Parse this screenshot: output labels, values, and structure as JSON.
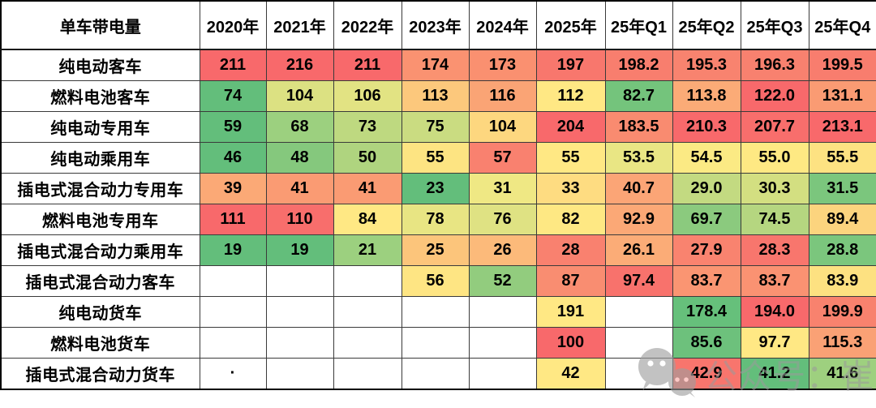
{
  "table": {
    "title": "单车带电量",
    "columns": [
      "2020年",
      "2021年",
      "2022年",
      "2023年",
      "2024年",
      "2025年",
      "25年Q1",
      "25年Q2",
      "25年Q3",
      "25年Q4"
    ],
    "highlight_col": 5,
    "rows": [
      {
        "label": "纯电动客车",
        "cells": [
          {
            "v": "211",
            "bg": "#F8696B"
          },
          {
            "v": "216",
            "bg": "#F8696B"
          },
          {
            "v": "211",
            "bg": "#F8696B"
          },
          {
            "v": "174",
            "bg": "#FA9271"
          },
          {
            "v": "173",
            "bg": "#FA9070"
          },
          {
            "v": "197",
            "bg": "#F8776D"
          },
          {
            "v": "198.2",
            "bg": "#F87E6E"
          },
          {
            "v": "195.3",
            "bg": "#F8836F"
          },
          {
            "v": "196.3",
            "bg": "#F8816F"
          },
          {
            "v": "199.5",
            "bg": "#F87D6E"
          }
        ]
      },
      {
        "label": "燃料电池客车",
        "cells": [
          {
            "v": "74",
            "bg": "#63BE7B"
          },
          {
            "v": "104",
            "bg": "#DCE182"
          },
          {
            "v": "106",
            "bg": "#E2E383"
          },
          {
            "v": "113",
            "bg": "#FCC87C"
          },
          {
            "v": "116",
            "bg": "#FAA475"
          },
          {
            "v": "112",
            "bg": "#FFE884"
          },
          {
            "v": "82.7",
            "bg": "#74C47C"
          },
          {
            "v": "113.8",
            "bg": "#FBAB77"
          },
          {
            "v": "122.0",
            "bg": "#F8696B"
          },
          {
            "v": "131.1",
            "bg": "#FA9B73"
          }
        ]
      },
      {
        "label": "纯电动专用车",
        "cells": [
          {
            "v": "59",
            "bg": "#63BE7B"
          },
          {
            "v": "68",
            "bg": "#9CD07F"
          },
          {
            "v": "73",
            "bg": "#BED980"
          },
          {
            "v": "75",
            "bg": "#CADC81"
          },
          {
            "v": "104",
            "bg": "#FDD77F"
          },
          {
            "v": "204",
            "bg": "#F8696B"
          },
          {
            "v": "183.5",
            "bg": "#F98B70"
          },
          {
            "v": "210.3",
            "bg": "#F8696B"
          },
          {
            "v": "207.7",
            "bg": "#F86E6C"
          },
          {
            "v": "213.1",
            "bg": "#F8696B"
          }
        ]
      },
      {
        "label": "纯电动乘用车",
        "cells": [
          {
            "v": "46",
            "bg": "#63BE7B"
          },
          {
            "v": "48",
            "bg": "#85C87D"
          },
          {
            "v": "50",
            "bg": "#AFD47F"
          },
          {
            "v": "55",
            "bg": "#FDE482"
          },
          {
            "v": "57",
            "bg": "#F9816F"
          },
          {
            "v": "55",
            "bg": "#FFE884"
          },
          {
            "v": "53.5",
            "bg": "#E9E684"
          },
          {
            "v": "54.5",
            "bg": "#FBEA84"
          },
          {
            "v": "55.0",
            "bg": "#FEE983"
          },
          {
            "v": "55.5",
            "bg": "#FDE282"
          }
        ]
      },
      {
        "label": "插电式混合动力专用车",
        "cells": [
          {
            "v": "39",
            "bg": "#FBA976"
          },
          {
            "v": "41",
            "bg": "#FA9B73"
          },
          {
            "v": "41",
            "bg": "#FA9B73"
          },
          {
            "v": "23",
            "bg": "#63BE7B"
          },
          {
            "v": "31",
            "bg": "#EFE884"
          },
          {
            "v": "33",
            "bg": "#FEDC81"
          },
          {
            "v": "40.7",
            "bg": "#FBA576"
          },
          {
            "v": "29.0",
            "bg": "#C3DA81"
          },
          {
            "v": "30.3",
            "bg": "#D3DF81"
          },
          {
            "v": "31.5",
            "bg": "#7BC67D"
          }
        ]
      },
      {
        "label": "燃料电池专用车",
        "cells": [
          {
            "v": "111",
            "bg": "#F8696B"
          },
          {
            "v": "110",
            "bg": "#F86E6C"
          },
          {
            "v": "84",
            "bg": "#FFE884"
          },
          {
            "v": "78",
            "bg": "#E8E583"
          },
          {
            "v": "76",
            "bg": "#DFE283"
          },
          {
            "v": "82",
            "bg": "#FEE883"
          },
          {
            "v": "92.9",
            "bg": "#FBA876"
          },
          {
            "v": "69.7",
            "bg": "#8BCA7E"
          },
          {
            "v": "74.5",
            "bg": "#B5D680"
          },
          {
            "v": "89.4",
            "bg": "#FCD47E"
          }
        ]
      },
      {
        "label": "插电式混合动力乘用车",
        "cells": [
          {
            "v": "19",
            "bg": "#63BE7B"
          },
          {
            "v": "19",
            "bg": "#63BE7B"
          },
          {
            "v": "21",
            "bg": "#9CD07F"
          },
          {
            "v": "25",
            "bg": "#FCC57B"
          },
          {
            "v": "26",
            "bg": "#FCBA7A"
          },
          {
            "v": "28",
            "bg": "#F9816F"
          },
          {
            "v": "26.1",
            "bg": "#FBAC77"
          },
          {
            "v": "27.9",
            "bg": "#F9836F"
          },
          {
            "v": "28.3",
            "bg": "#F8766D"
          },
          {
            "v": "28.8",
            "bg": "#7BC67D"
          }
        ]
      },
      {
        "label": "插电式混合动力客车",
        "cells": [
          {
            "v": "",
            "bg": "#FFFFFF"
          },
          {
            "v": "",
            "bg": "#FFFFFF"
          },
          {
            "v": "",
            "bg": "#FFFFFF"
          },
          {
            "v": "56",
            "bg": "#FEE583"
          },
          {
            "v": "52",
            "bg": "#92CC7E"
          },
          {
            "v": "87",
            "bg": "#F98D71"
          },
          {
            "v": "97.4",
            "bg": "#F8726C"
          },
          {
            "v": "83.7",
            "bg": "#FA9572"
          },
          {
            "v": "83.7",
            "bg": "#FA9272"
          },
          {
            "v": "83.9",
            "bg": "#FDE181"
          }
        ]
      },
      {
        "label": "纯电动货车",
        "cells": [
          {
            "v": "",
            "bg": "#FFFFFF"
          },
          {
            "v": "",
            "bg": "#FFFFFF"
          },
          {
            "v": "",
            "bg": "#FFFFFF"
          },
          {
            "v": "",
            "bg": "#FFFFFF"
          },
          {
            "v": "",
            "bg": "#FFFFFF"
          },
          {
            "v": "191",
            "bg": "#FFE884"
          },
          {
            "v": "",
            "bg": "#FFFFFF"
          },
          {
            "v": "178.4",
            "bg": "#66C07B"
          },
          {
            "v": "194.0",
            "bg": "#F8696B"
          },
          {
            "v": "199.9",
            "bg": "#F8826E"
          }
        ]
      },
      {
        "label": "燃料电池货车",
        "cells": [
          {
            "v": "",
            "bg": "#FFFFFF"
          },
          {
            "v": "",
            "bg": "#FFFFFF"
          },
          {
            "v": "",
            "bg": "#FFFFFF"
          },
          {
            "v": "",
            "bg": "#FFFFFF"
          },
          {
            "v": "",
            "bg": "#FFFFFF"
          },
          {
            "v": "100",
            "bg": "#F8696B"
          },
          {
            "v": "",
            "bg": "#FFFFFF"
          },
          {
            "v": "85.6",
            "bg": "#6DC17C"
          },
          {
            "v": "97.7",
            "bg": "#FFE884"
          },
          {
            "v": "115.3",
            "bg": "#FAA175"
          }
        ]
      },
      {
        "label": "插电式混合动力货车",
        "cells": [
          {
            "v": "·",
            "bg": "#FFFFFF"
          },
          {
            "v": "",
            "bg": "#FFFFFF"
          },
          {
            "v": "",
            "bg": "#FFFFFF"
          },
          {
            "v": "",
            "bg": "#FFFFFF"
          },
          {
            "v": "",
            "bg": "#FFFFFF"
          },
          {
            "v": "42",
            "bg": "#FFE884"
          },
          {
            "v": "",
            "bg": "#FFFFFF"
          },
          {
            "v": "42.9",
            "bg": "#F8756D"
          },
          {
            "v": "41.2",
            "bg": "#63BE7B"
          },
          {
            "v": "41.6",
            "bg": "#9ED07F"
          }
        ]
      }
    ]
  },
  "colors": {
    "title_red": "#FF0000",
    "highlight_text_red": "#FF0000",
    "grid_line": "#3a3a3a",
    "outer_frame": "#000000",
    "heat_min_green": "#63BE7B",
    "heat_mid_yellow": "#FFE884",
    "heat_max_red": "#F8696B",
    "watermark_gray": "#9b9b9b"
  },
  "watermark": {
    "icon": "wechat-icon",
    "text": "公众号：崔东树"
  },
  "chart_data": {
    "type": "table",
    "title": "单车带电量",
    "legend_note": "heatmap cell shading from green (low) through yellow to red (high); 2025年 column values shown in red",
    "categories": [
      "2020年",
      "2021年",
      "2022年",
      "2023年",
      "2024年",
      "2025年",
      "25年Q1",
      "25年Q2",
      "25年Q3",
      "25年Q4"
    ],
    "series": [
      {
        "name": "纯电动客车",
        "values": [
          211,
          216,
          211,
          174,
          173,
          197,
          198.2,
          195.3,
          196.3,
          199.5
        ]
      },
      {
        "name": "燃料电池客车",
        "values": [
          74,
          104,
          106,
          113,
          116,
          112,
          82.7,
          113.8,
          122.0,
          131.1
        ]
      },
      {
        "name": "纯电动专用车",
        "values": [
          59,
          68,
          73,
          75,
          104,
          204,
          183.5,
          210.3,
          207.7,
          213.1
        ]
      },
      {
        "name": "纯电动乘用车",
        "values": [
          46,
          48,
          50,
          55,
          57,
          55,
          53.5,
          54.5,
          55.0,
          55.5
        ]
      },
      {
        "name": "插电式混合动力专用车",
        "values": [
          39,
          41,
          41,
          23,
          31,
          33,
          40.7,
          29.0,
          30.3,
          31.5
        ]
      },
      {
        "name": "燃料电池专用车",
        "values": [
          111,
          110,
          84,
          78,
          76,
          82,
          92.9,
          69.7,
          74.5,
          89.4
        ]
      },
      {
        "name": "插电式混合动力乘用车",
        "values": [
          19,
          19,
          21,
          25,
          26,
          28,
          26.1,
          27.9,
          28.3,
          28.8
        ]
      },
      {
        "name": "插电式混合动力客车",
        "values": [
          null,
          null,
          null,
          56,
          52,
          87,
          97.4,
          83.7,
          83.7,
          83.9
        ]
      },
      {
        "name": "纯电动货车",
        "values": [
          null,
          null,
          null,
          null,
          null,
          191,
          null,
          178.4,
          194.0,
          199.9
        ]
      },
      {
        "name": "燃料电池货车",
        "values": [
          null,
          null,
          null,
          null,
          null,
          100,
          null,
          85.6,
          97.7,
          115.3
        ]
      },
      {
        "name": "插电式混合动力货车",
        "values": [
          null,
          null,
          null,
          null,
          null,
          42,
          null,
          42.9,
          41.2,
          41.6
        ]
      }
    ]
  }
}
